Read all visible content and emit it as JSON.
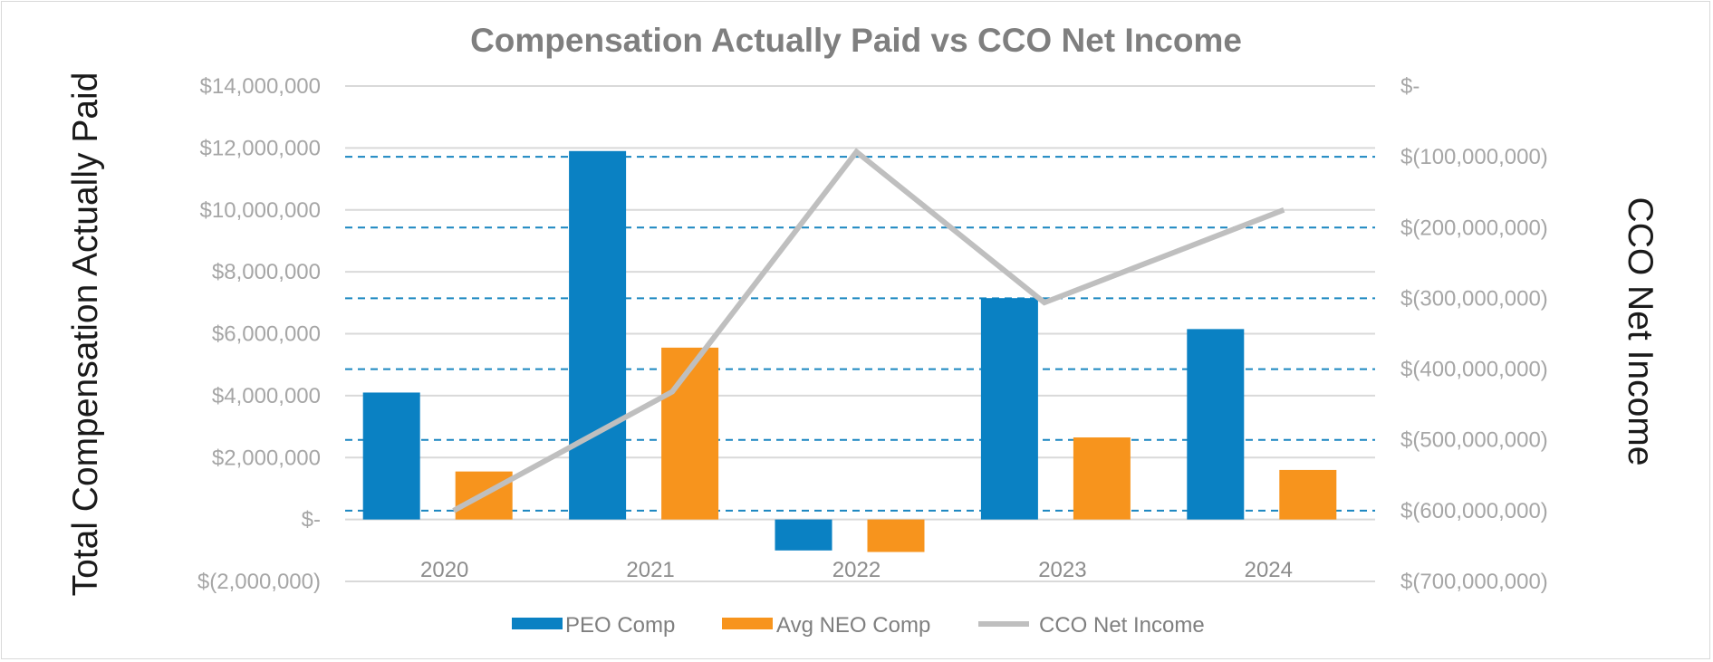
{
  "chart_data": {
    "type": "bar",
    "title": "Compensation Actually Paid vs CCO Net Income",
    "categories": [
      "2020",
      "2021",
      "2022",
      "2023",
      "2024"
    ],
    "series": [
      {
        "name": "PEO Comp",
        "kind": "bar",
        "axis": "left",
        "color": "#0a81c3",
        "values": [
          4100000,
          11900000,
          -1000000,
          7150000,
          6150000
        ]
      },
      {
        "name": "Avg NEO Comp",
        "kind": "bar",
        "axis": "left",
        "color": "#f7941d",
        "values": [
          1550000,
          5550000,
          -1050000,
          2650000,
          1600000
        ]
      },
      {
        "name": "CCO Net Income",
        "kind": "line",
        "axis": "right",
        "color": "#bfbfbf",
        "values": [
          -600000000,
          -432000000,
          -93000000,
          -306000000,
          -175000000
        ]
      }
    ],
    "ylabel": "Total Compensation Actually Paid",
    "y2label": "CCO  Net Income",
    "ylim": [
      -2000000,
      14000000
    ],
    "y2lim": [
      -700000000,
      0
    ],
    "yticks": [
      -2000000,
      0,
      2000000,
      4000000,
      6000000,
      8000000,
      10000000,
      12000000,
      14000000
    ],
    "ytick_labels": [
      "$(2,000,000)",
      "$-",
      "$2,000,000",
      "$4,000,000",
      "$6,000,000",
      "$8,000,000",
      "$10,000,000",
      "$12,000,000",
      "$14,000,000"
    ],
    "y2ticks": [
      -700000000,
      -600000000,
      -500000000,
      -400000000,
      -300000000,
      -200000000,
      -100000000,
      0
    ],
    "y2tick_labels": [
      "$(700,000,000)",
      "$(600,000,000)",
      "$(500,000,000)",
      "$(400,000,000)",
      "$(300,000,000)",
      "$(200,000,000)",
      "$(100,000,000)",
      "$-"
    ],
    "grid": "solid gray for left axis, dashed blue for right axis",
    "gridline_colors": {
      "primary": "#d9d9d9",
      "secondary": "#1a86c0"
    },
    "legend": "bottom-center",
    "legend_labels": [
      "PEO Comp",
      "Avg NEO Comp",
      "CCO Net Income"
    ]
  }
}
